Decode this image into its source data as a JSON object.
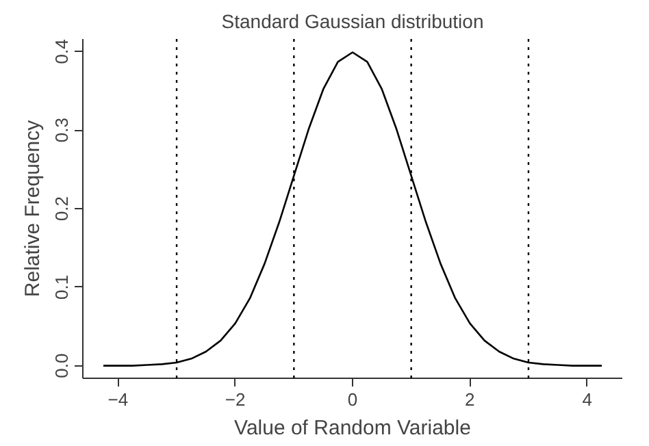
{
  "chart_data": {
    "type": "line",
    "title": "Standard Gaussian distribution",
    "xlabel": "Value of Random Variable",
    "ylabel": "Relative Frequency",
    "x": [
      -4.25,
      -4,
      -3.75,
      -3.5,
      -3.25,
      -3,
      -2.75,
      -2.5,
      -2.25,
      -2,
      -1.75,
      -1.5,
      -1.25,
      -1,
      -0.75,
      -0.5,
      -0.25,
      0,
      0.25,
      0.5,
      0.75,
      1,
      1.25,
      1.5,
      1.75,
      2,
      2.25,
      2.5,
      2.75,
      3,
      3.25,
      3.5,
      3.75,
      4,
      4.25
    ],
    "series": [
      {
        "color": "#000000",
        "values": [
          0.0,
          0.0,
          0.0,
          0.001,
          0.002,
          0.004,
          0.009,
          0.018,
          0.032,
          0.054,
          0.086,
          0.13,
          0.183,
          0.242,
          0.301,
          0.352,
          0.387,
          0.399,
          0.387,
          0.352,
          0.301,
          0.242,
          0.183,
          0.13,
          0.086,
          0.054,
          0.032,
          0.018,
          0.009,
          0.004,
          0.002,
          0.001,
          0.0,
          0.0,
          0.0
        ]
      }
    ],
    "xlim": [
      -4.6,
      4.6
    ],
    "ylim": [
      -0.016,
      0.416
    ],
    "xticks": [
      {
        "value": -4,
        "label": "−4"
      },
      {
        "value": -2,
        "label": "−2"
      },
      0,
      2,
      4
    ],
    "yticks": [
      {
        "value": 0,
        "label": "0.0"
      },
      0.1,
      0.2,
      0.3,
      0.4
    ],
    "ref_lines": [
      {
        "axis": "x",
        "value": -3,
        "line_style": "dotted"
      },
      {
        "axis": "x",
        "value": -1,
        "line_style": "dotted"
      },
      {
        "axis": "x",
        "value": 1,
        "line_style": "dotted"
      },
      {
        "axis": "x",
        "value": 3,
        "line_style": "dotted"
      }
    ],
    "grid": false,
    "line_style": "solid",
    "marker": "none"
  }
}
